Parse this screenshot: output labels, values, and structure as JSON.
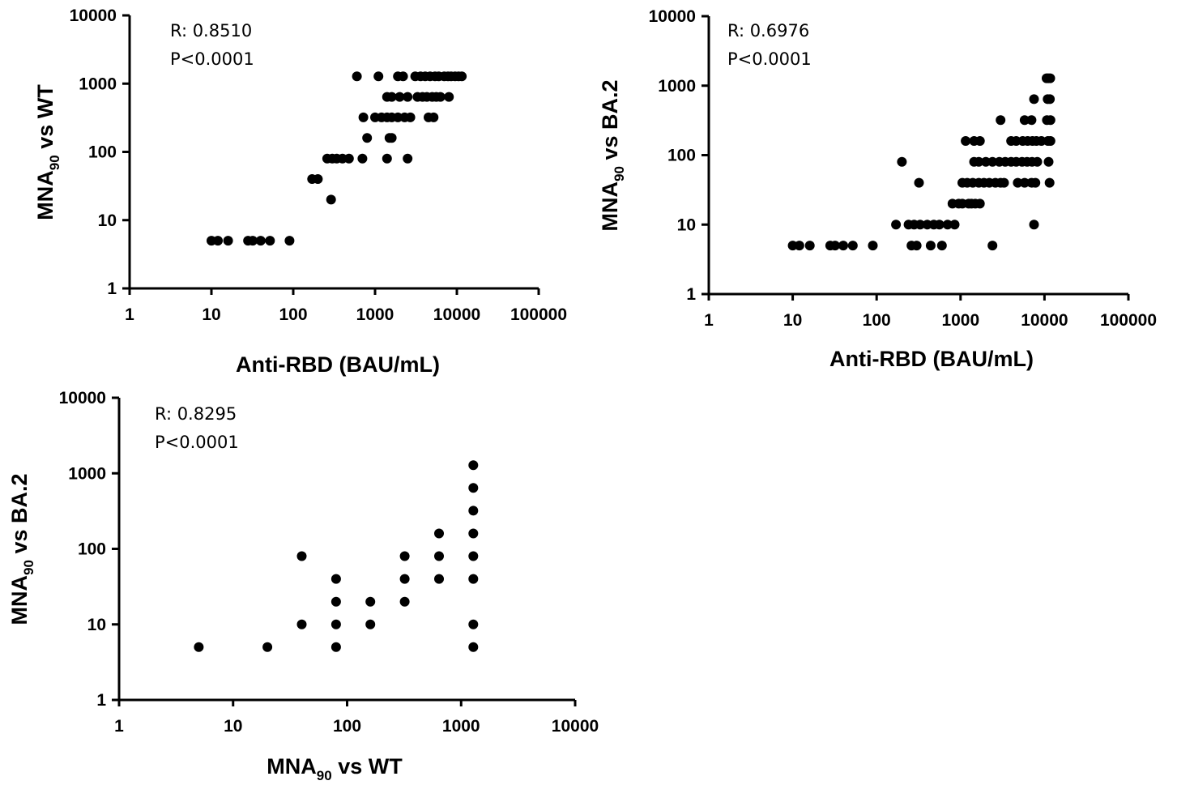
{
  "chart_data": [
    {
      "id": "p1",
      "type": "scatter",
      "scale": "log-log",
      "xlabel": "Anti-RBD (BAU/mL)",
      "ylabel_main": "MNA",
      "ylabel_sub": "90",
      "ylabel_rest": " vs WT",
      "xlim": [
        1,
        100000
      ],
      "ylim": [
        1,
        10000
      ],
      "xticks": [
        "1",
        "10",
        "100",
        "1000",
        "10000",
        "100000"
      ],
      "yticks": [
        "1",
        "10",
        "100",
        "1000",
        "10000"
      ],
      "stats": [
        "R: 0.8510",
        "P<0.0001"
      ],
      "points": [
        [
          10,
          5
        ],
        [
          12,
          5
        ],
        [
          16,
          5
        ],
        [
          28,
          5
        ],
        [
          32,
          5
        ],
        [
          40,
          5
        ],
        [
          52,
          5
        ],
        [
          90,
          5
        ],
        [
          290,
          20
        ],
        [
          170,
          40
        ],
        [
          200,
          40
        ],
        [
          260,
          80
        ],
        [
          300,
          80
        ],
        [
          340,
          80
        ],
        [
          400,
          80
        ],
        [
          480,
          80
        ],
        [
          700,
          80
        ],
        [
          1400,
          80
        ],
        [
          2500,
          80
        ],
        [
          800,
          160
        ],
        [
          1500,
          160
        ],
        [
          1600,
          160
        ],
        [
          720,
          320
        ],
        [
          1000,
          320
        ],
        [
          1200,
          320
        ],
        [
          1400,
          320
        ],
        [
          1600,
          320
        ],
        [
          1900,
          320
        ],
        [
          2300,
          320
        ],
        [
          2700,
          320
        ],
        [
          4500,
          320
        ],
        [
          5200,
          320
        ],
        [
          1400,
          640
        ],
        [
          1600,
          640
        ],
        [
          2000,
          640
        ],
        [
          2500,
          640
        ],
        [
          3300,
          640
        ],
        [
          3800,
          640
        ],
        [
          4300,
          640
        ],
        [
          5000,
          640
        ],
        [
          5600,
          640
        ],
        [
          6300,
          640
        ],
        [
          8000,
          640
        ],
        [
          600,
          1280
        ],
        [
          1100,
          1280
        ],
        [
          1900,
          1280
        ],
        [
          2200,
          1280
        ],
        [
          3100,
          1280
        ],
        [
          3600,
          1280
        ],
        [
          4100,
          1280
        ],
        [
          4700,
          1280
        ],
        [
          5400,
          1280
        ],
        [
          6000,
          1280
        ],
        [
          7000,
          1280
        ],
        [
          7800,
          1280
        ],
        [
          8500,
          1280
        ],
        [
          9500,
          1280
        ],
        [
          10500,
          1280
        ],
        [
          11500,
          1280
        ]
      ]
    },
    {
      "id": "p2",
      "type": "scatter",
      "scale": "log-log",
      "xlabel": "Anti-RBD (BAU/mL)",
      "ylabel_main": "MNA",
      "ylabel_sub": "90",
      "ylabel_rest": " vs BA.2",
      "xlim": [
        1,
        100000
      ],
      "ylim": [
        1,
        10000
      ],
      "xticks": [
        "1",
        "10",
        "100",
        "1000",
        "10000",
        "100000"
      ],
      "yticks": [
        "1",
        "10",
        "100",
        "1000",
        "10000"
      ],
      "stats": [
        "R: 0.6976",
        "P<0.0001"
      ],
      "points": [
        [
          10,
          5
        ],
        [
          12,
          5
        ],
        [
          16,
          5
        ],
        [
          28,
          5
        ],
        [
          32,
          5
        ],
        [
          40,
          5
        ],
        [
          52,
          5
        ],
        [
          90,
          5
        ],
        [
          260,
          5
        ],
        [
          300,
          5
        ],
        [
          440,
          5
        ],
        [
          600,
          5
        ],
        [
          2400,
          5
        ],
        [
          170,
          10
        ],
        [
          240,
          10
        ],
        [
          280,
          10
        ],
        [
          330,
          10
        ],
        [
          400,
          10
        ],
        [
          480,
          10
        ],
        [
          560,
          10
        ],
        [
          700,
          10
        ],
        [
          850,
          10
        ],
        [
          7500,
          10
        ],
        [
          800,
          20
        ],
        [
          950,
          20
        ],
        [
          1050,
          20
        ],
        [
          1250,
          20
        ],
        [
          1350,
          20
        ],
        [
          1500,
          20
        ],
        [
          1700,
          20
        ],
        [
          320,
          40
        ],
        [
          1050,
          40
        ],
        [
          1200,
          40
        ],
        [
          1400,
          40
        ],
        [
          1650,
          40
        ],
        [
          1900,
          40
        ],
        [
          2200,
          40
        ],
        [
          2600,
          40
        ],
        [
          3000,
          40
        ],
        [
          3300,
          40
        ],
        [
          4800,
          40
        ],
        [
          5800,
          40
        ],
        [
          7000,
          40
        ],
        [
          7800,
          40
        ],
        [
          11500,
          40
        ],
        [
          200,
          80
        ],
        [
          1450,
          80
        ],
        [
          1650,
          80
        ],
        [
          2000,
          80
        ],
        [
          2400,
          80
        ],
        [
          2900,
          80
        ],
        [
          3400,
          80
        ],
        [
          4000,
          80
        ],
        [
          4600,
          80
        ],
        [
          5400,
          80
        ],
        [
          6200,
          80
        ],
        [
          7100,
          80
        ],
        [
          8200,
          80
        ],
        [
          11200,
          80
        ],
        [
          1150,
          160
        ],
        [
          1450,
          160
        ],
        [
          1700,
          160
        ],
        [
          4000,
          160
        ],
        [
          4600,
          160
        ],
        [
          5500,
          160
        ],
        [
          6300,
          160
        ],
        [
          7200,
          160
        ],
        [
          8000,
          160
        ],
        [
          9200,
          160
        ],
        [
          11000,
          160
        ],
        [
          11800,
          160
        ],
        [
          3000,
          320
        ],
        [
          5800,
          320
        ],
        [
          7000,
          320
        ],
        [
          10700,
          320
        ],
        [
          11800,
          320
        ],
        [
          7500,
          640
        ],
        [
          10900,
          640
        ],
        [
          11600,
          640
        ],
        [
          10600,
          1280
        ],
        [
          11100,
          1280
        ],
        [
          11700,
          1280
        ]
      ]
    },
    {
      "id": "p3",
      "type": "scatter",
      "scale": "log-log",
      "xlabel_main": "MNA",
      "xlabel_sub": "90",
      "xlabel_rest": " vs WT",
      "ylabel_main": "MNA",
      "ylabel_sub": "90",
      "ylabel_rest": " vs BA.2",
      "xlim": [
        1,
        10000
      ],
      "ylim": [
        1,
        10000
      ],
      "xticks": [
        "1",
        "10",
        "100",
        "1000",
        "10000"
      ],
      "yticks": [
        "1",
        "10",
        "100",
        "1000",
        "10000"
      ],
      "stats": [
        "R: 0.8295",
        "P<0.0001"
      ],
      "points": [
        [
          5,
          5
        ],
        [
          20,
          5
        ],
        [
          80,
          5
        ],
        [
          1280,
          5
        ],
        [
          40,
          10
        ],
        [
          80,
          10
        ],
        [
          160,
          10
        ],
        [
          1280,
          10
        ],
        [
          80,
          20
        ],
        [
          160,
          20
        ],
        [
          320,
          20
        ],
        [
          80,
          40
        ],
        [
          320,
          40
        ],
        [
          640,
          40
        ],
        [
          1280,
          40
        ],
        [
          40,
          80
        ],
        [
          320,
          80
        ],
        [
          640,
          80
        ],
        [
          1280,
          80
        ],
        [
          640,
          160
        ],
        [
          1280,
          160
        ],
        [
          1280,
          320
        ],
        [
          1280,
          640
        ],
        [
          1280,
          1280
        ]
      ]
    }
  ]
}
